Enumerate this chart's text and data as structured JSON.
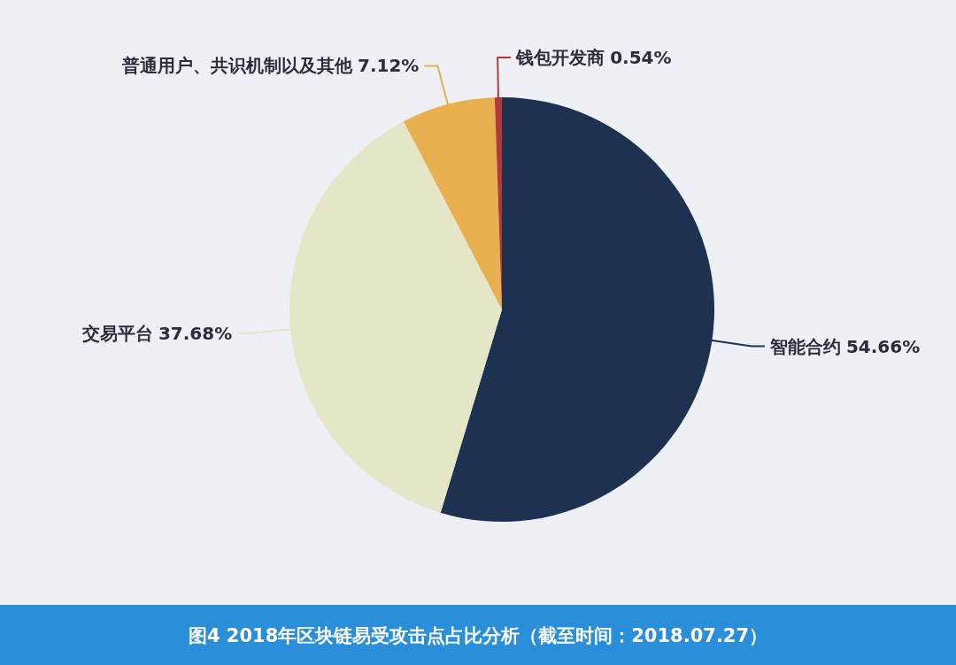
{
  "chart_data": {
    "type": "pie",
    "title": "图4  2018年区块链易受攻击点占比分析（截至时间：2018.07.27）",
    "categories": [
      "智能合约",
      "交易平台",
      "普通用户、共识机制以及其他",
      "钱包开发商"
    ],
    "values": [
      54.66,
      37.68,
      7.12,
      0.54
    ],
    "colors": [
      "#1c3250",
      "#e5e6c8",
      "#e8b04e",
      "#b03a3a"
    ],
    "value_labels": [
      "54.66%",
      "37.68%",
      "7.12%",
      "0.54%"
    ]
  }
}
